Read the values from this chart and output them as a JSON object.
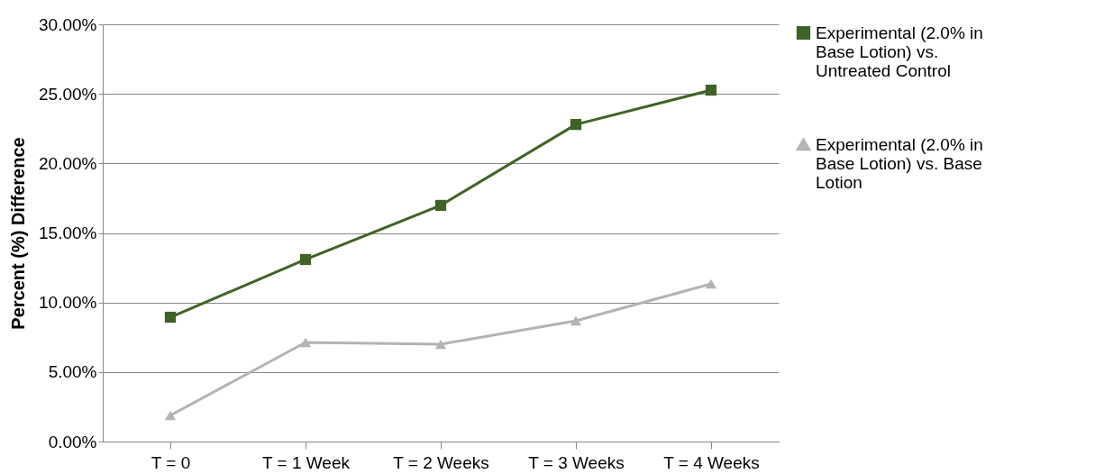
{
  "chart_data": {
    "type": "line",
    "ylabel": "Percent (%) Difference",
    "categories": [
      "T = 0",
      "T = 1 Week",
      "T = 2 Weeks",
      "T = 3 Weeks",
      "T = 4 Weeks"
    ],
    "series": [
      {
        "name": "Experimental (2.0% in Base Lotion) vs. Untreated Control",
        "color": "#3f6327",
        "marker": "square",
        "values": [
          8.94,
          13.09,
          16.98,
          22.8,
          25.27
        ]
      },
      {
        "name": "Experimental (2.0% in Base Lotion) vs. Base Lotion",
        "color": "#b3b3b3",
        "marker": "triangle",
        "values": [
          1.88,
          7.13,
          7.0,
          8.68,
          11.34
        ]
      }
    ],
    "ylim": [
      0,
      30
    ],
    "yticks": [
      {
        "value": 0,
        "label": "0.00%"
      },
      {
        "value": 5,
        "label": "5.00%"
      },
      {
        "value": 10,
        "label": "10.00%"
      },
      {
        "value": 15,
        "label": "15.00%"
      },
      {
        "value": 20,
        "label": "20.00%"
      },
      {
        "value": 25,
        "label": "25.00%"
      },
      {
        "value": 30,
        "label": "30.00%"
      }
    ],
    "grid": "y",
    "legend": "right",
    "line_style": "solid"
  }
}
